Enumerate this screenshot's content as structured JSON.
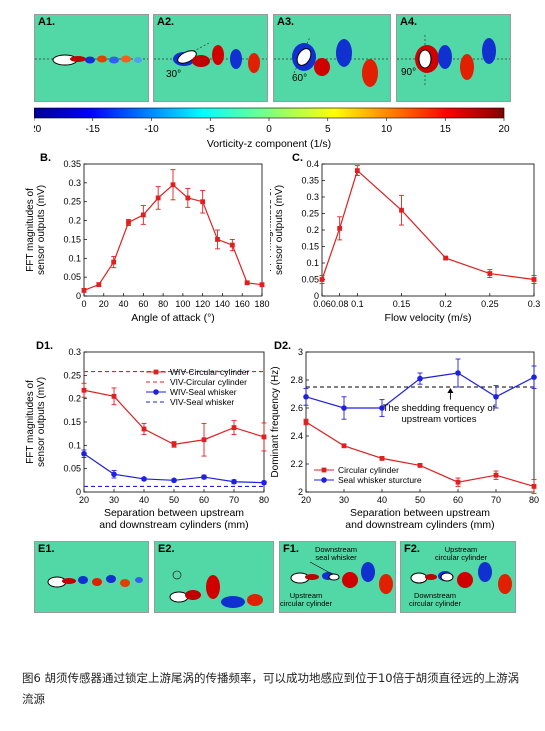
{
  "panels_top": [
    {
      "label": "A1.",
      "angle": ""
    },
    {
      "label": "A2.",
      "angle": "30°"
    },
    {
      "label": "A3.",
      "angle": "60°"
    },
    {
      "label": "A4.",
      "angle": "90°"
    }
  ],
  "colorbar": {
    "ticks": [
      "-20",
      "-15",
      "-10",
      "-5",
      "0",
      "5",
      "10",
      "15",
      "20"
    ],
    "label": "Vorticity-z component (1/s)"
  },
  "panels_bottom": [
    {
      "label": "E1."
    },
    {
      "label": "E2."
    },
    {
      "label": "F1.",
      "ann1": "Downstream",
      "ann2": "seal whisker",
      "ann3": "Upstream",
      "ann4": "circular cylinder"
    },
    {
      "label": "F2.",
      "ann1": "Upstream",
      "ann2": "circular cylinder",
      "ann3": "Downstream",
      "ann4": "circular cylinder"
    }
  ],
  "chart_data": [
    {
      "id": "B",
      "label": "B.",
      "type": "line",
      "xlabel": "Angle of attack (°)",
      "ylabel_line1": "FFT magnitudes of",
      "ylabel_line2": "sensor outputs (mV)",
      "xlim": [
        0,
        180
      ],
      "ylim": [
        0,
        0.35
      ],
      "xticks": [
        0,
        20,
        40,
        60,
        80,
        100,
        120,
        140,
        160,
        180
      ],
      "yticks": [
        0,
        0.05,
        0.1,
        0.15,
        0.2,
        0.25,
        0.3,
        0.35
      ],
      "series": [
        {
          "color": "#e02020",
          "x": [
            0,
            15,
            30,
            45,
            60,
            75,
            90,
            105,
            120,
            135,
            150,
            165,
            180
          ],
          "y": [
            0.015,
            0.03,
            0.09,
            0.195,
            0.215,
            0.26,
            0.295,
            0.26,
            0.25,
            0.15,
            0.135,
            0.035,
            0.03
          ],
          "err": [
            0.005,
            0.005,
            0.015,
            0.008,
            0.025,
            0.03,
            0.04,
            0.025,
            0.03,
            0.025,
            0.015,
            0.003,
            0.003
          ]
        }
      ]
    },
    {
      "id": "C",
      "label": "C.",
      "type": "line",
      "xlabel": "Flow velocity (m/s)",
      "ylabel_line1": "FFT magnitudes of",
      "ylabel_line2": "sensor outputs (mV)",
      "xlim": [
        0.06,
        0.3
      ],
      "ylim": [
        0,
        0.4
      ],
      "xticks": [
        0.06,
        0.08,
        0.1,
        0.15,
        0.2,
        0.25,
        0.3
      ],
      "xticklabels": [
        "0.06",
        "0.08",
        "0.1",
        "0.15",
        "0.2",
        "0.25",
        "0.3"
      ],
      "yticks": [
        0,
        0.05,
        0.1,
        0.15,
        0.2,
        0.25,
        0.3,
        0.35,
        0.4
      ],
      "series": [
        {
          "color": "#e02020",
          "x": [
            0.06,
            0.08,
            0.1,
            0.15,
            0.2,
            0.25,
            0.3
          ],
          "y": [
            0.05,
            0.205,
            0.38,
            0.26,
            0.115,
            0.068,
            0.05
          ],
          "err": [
            0.012,
            0.035,
            0.015,
            0.045,
            0.004,
            0.012,
            0.012
          ]
        }
      ]
    },
    {
      "id": "D1",
      "label": "D1.",
      "type": "line",
      "xlabel_line1": "Separation between upstream",
      "xlabel_line2": "and downstream cylinders (mm)",
      "ylabel_line1": "FFT magnitudes of",
      "ylabel_line2": "sensor outputs (mV)",
      "xlim": [
        20,
        80
      ],
      "ylim": [
        0,
        0.3
      ],
      "xticks": [
        20,
        30,
        40,
        50,
        60,
        70,
        80
      ],
      "yticks": [
        0,
        0.05,
        0.1,
        0.15,
        0.2,
        0.25,
        0.3
      ],
      "hlines": [
        {
          "y": 0.258,
          "color": "#e02020"
        },
        {
          "y": 0.012,
          "color": "#2020e0"
        }
      ],
      "series": [
        {
          "name": "WIV-Circular cylinder",
          "color": "#e02020",
          "marker": "square",
          "x": [
            20,
            30,
            40,
            50,
            60,
            70,
            80
          ],
          "y": [
            0.218,
            0.205,
            0.135,
            0.102,
            0.112,
            0.138,
            0.118
          ],
          "err": [
            0.015,
            0.018,
            0.012,
            0.006,
            0.035,
            0.015,
            0.03
          ]
        },
        {
          "name": "WIV-Seal whisker",
          "color": "#2020e0",
          "marker": "circle",
          "x": [
            20,
            30,
            40,
            50,
            60,
            70,
            80
          ],
          "y": [
            0.082,
            0.038,
            0.028,
            0.025,
            0.032,
            0.022,
            0.02
          ],
          "err": [
            0.008,
            0.008,
            0.003,
            0.003,
            0.004,
            0.004,
            0.003
          ]
        }
      ],
      "legend": [
        {
          "text": "WIV-Circular cylinder",
          "color": "#e02020",
          "style": "solid-square"
        },
        {
          "text": "VIV-Circular cylinder",
          "color": "#e02020",
          "style": "dash"
        },
        {
          "text": "WIV-Seal whisker",
          "color": "#2020e0",
          "style": "solid-circle"
        },
        {
          "text": "VIV-Seal whisker",
          "color": "#2020e0",
          "style": "dash"
        }
      ]
    },
    {
      "id": "D2",
      "label": "D2.",
      "type": "line",
      "xlabel_line1": "Separation between upstream",
      "xlabel_line2": "and downstream cylinders (mm)",
      "ylabel": "Dominant frequency (Hz)",
      "xlim": [
        20,
        80
      ],
      "ylim": [
        2,
        3
      ],
      "xticks": [
        20,
        30,
        40,
        50,
        60,
        70,
        80
      ],
      "yticks": [
        2,
        2.2,
        2.4,
        2.6,
        2.8,
        3
      ],
      "hlines": [
        {
          "y": 2.75,
          "color": "#000000"
        }
      ],
      "annotation_line1": "The shedding frequency of",
      "annotation_line2": "upstream vortices",
      "series": [
        {
          "name": "Circular cylinder",
          "color": "#e02020",
          "marker": "square",
          "x": [
            20,
            30,
            40,
            50,
            60,
            70,
            80
          ],
          "y": [
            2.5,
            2.33,
            2.24,
            2.19,
            2.07,
            2.12,
            2.04
          ],
          "err": [
            0.02,
            0.01,
            0.01,
            0.01,
            0.03,
            0.03,
            0.05
          ]
        },
        {
          "name": "Seal whisker sturcture",
          "color": "#2020e0",
          "marker": "circle",
          "x": [
            20,
            30,
            40,
            50,
            60,
            70,
            80
          ],
          "y": [
            2.68,
            2.6,
            2.6,
            2.81,
            2.85,
            2.68,
            2.82
          ],
          "err": [
            0.06,
            0.08,
            0.06,
            0.04,
            0.1,
            0.08,
            0.08
          ]
        }
      ],
      "legend": [
        {
          "text": "Circular cylinder",
          "color": "#e02020",
          "style": "solid-square"
        },
        {
          "text": "Seal whisker sturcture",
          "color": "#2020e0",
          "style": "solid-circle"
        }
      ]
    }
  ],
  "caption": "图6 胡须传感器通过锁定上游尾涡的传播频率，可以成功地感应到位于10倍于胡须直径远的上游涡流源"
}
